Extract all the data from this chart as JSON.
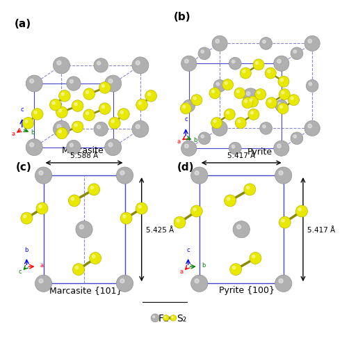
{
  "background": "#ffffff",
  "fe_color": "#b0b0b0",
  "s_color": "#e8e800",
  "s_edge_color": "#b8b800",
  "bond_color": "#8a8a00",
  "cell_color": "#4444cc",
  "cell_color_dashed": "#8888cc",
  "label_a": "(a)",
  "label_b": "(b)",
  "label_c": "(c)",
  "label_d": "(d)",
  "title_a": "Marcasite",
  "title_b": "Pyrite",
  "title_c": "Marcasite {101}",
  "title_d": "Pyrite {100}",
  "dim_c_width": "5.588 Å",
  "dim_c_height": "5.425 Å",
  "dim_d_width": "5.417 Å",
  "dim_d_height": "5.417 Å",
  "legend_fe": "Fe",
  "legend_s2": "S₂"
}
